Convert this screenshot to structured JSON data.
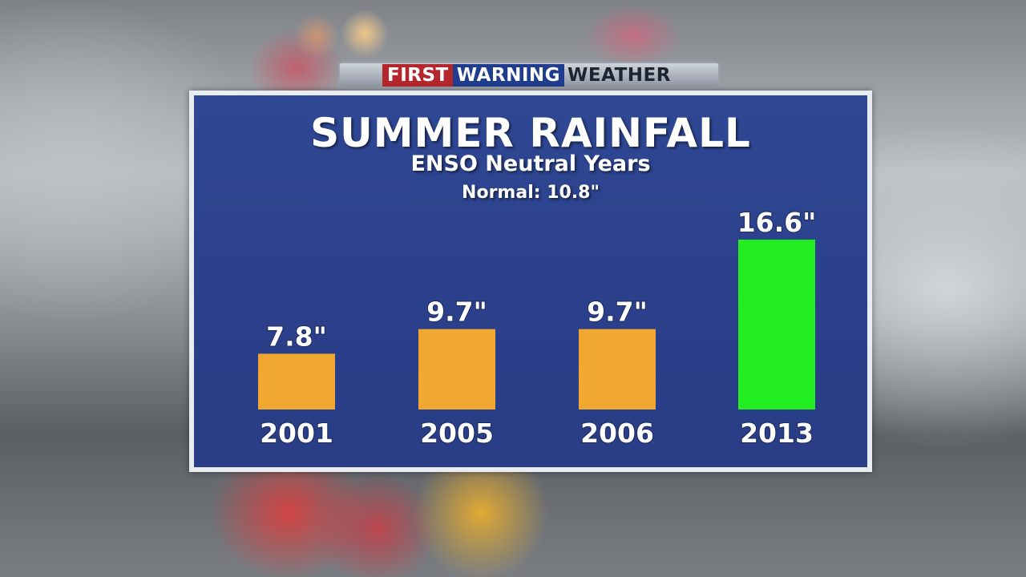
{
  "branding": {
    "logo_word1": "FIRST",
    "logo_word2": "WARNING",
    "logo_word3": "WEATHER"
  },
  "chart_data": {
    "type": "bar",
    "title": "SUMMER RAINFALL",
    "subtitle": "ENSO Neutral Years",
    "note": "Normal: 10.8\"",
    "categories": [
      "2001",
      "2005",
      "2006",
      "2013"
    ],
    "values": [
      7.8,
      9.7,
      9.7,
      16.6
    ],
    "value_labels": [
      "7.8\"",
      "9.7\"",
      "9.7\"",
      "16.6\""
    ],
    "normal": 10.8,
    "colors": [
      "#f0a830",
      "#f0a830",
      "#f0a830",
      "#22ee22"
    ],
    "ylim": [
      3.5,
      16.6
    ],
    "grid": false
  }
}
